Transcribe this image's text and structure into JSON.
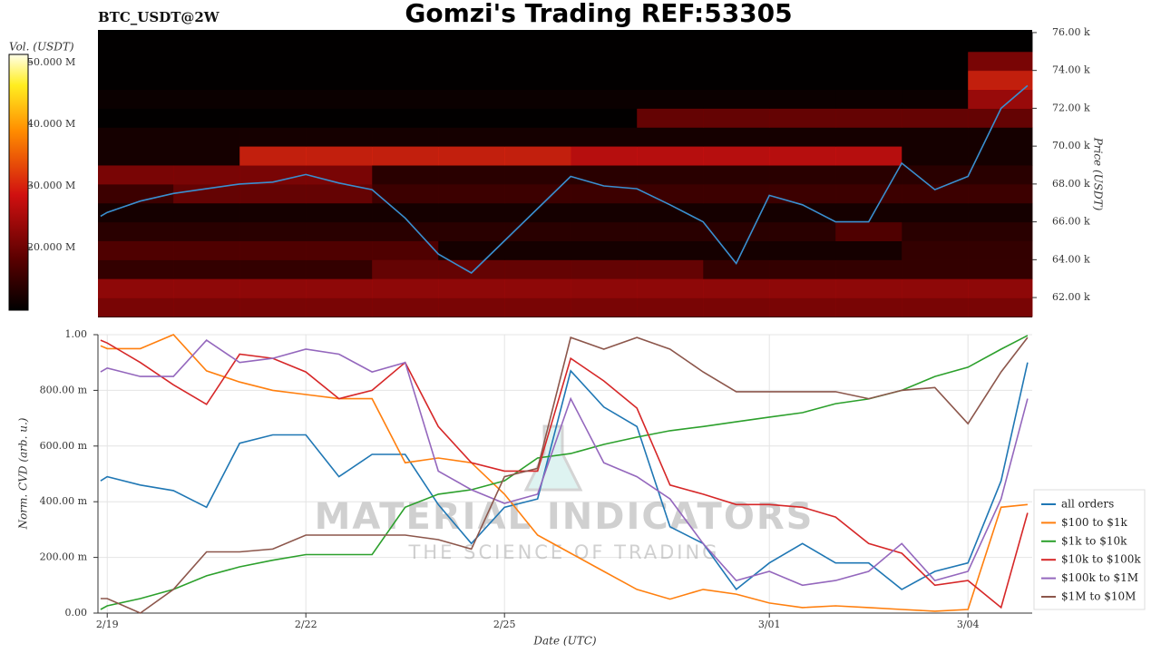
{
  "chart_data": [
    {
      "type": "heatmap",
      "title": "Gomzi's Trading REF:53305",
      "subtitle": "BTC_USDT@2W",
      "ylabel": "Price (USDT)",
      "xlim": [
        -0.14,
        13.97
      ],
      "ylim": [
        60950,
        76140
      ],
      "yticks": [
        {
          "value": 62000,
          "label": "62.00 k"
        },
        {
          "value": 64000,
          "label": "64.00 k"
        },
        {
          "value": 66000,
          "label": "66.00 k"
        },
        {
          "value": 68000,
          "label": "68.00 k"
        },
        {
          "value": 70000,
          "label": "70.00 k"
        },
        {
          "value": 72000,
          "label": "72.00 k"
        },
        {
          "value": 74000,
          "label": "74.00 k"
        },
        {
          "value": 76000,
          "label": "76.00 k"
        }
      ],
      "x_bins": [
        -0.14,
        1,
        2,
        3,
        4,
        5,
        6,
        7,
        8,
        9,
        10,
        11,
        12,
        13,
        13.97
      ],
      "y_bins": [
        61000,
        62000,
        63000,
        64000,
        65000,
        66000,
        67000,
        68000,
        69000,
        70000,
        71000,
        72000,
        73000,
        74000,
        75000,
        76000
      ],
      "values": [
        [
          22000000,
          22000000,
          22000000,
          22000000,
          22000000,
          22000000,
          22000000,
          22000000,
          22000000,
          22000000,
          22000000,
          22000000,
          22000000,
          22000000
        ],
        [
          24000000,
          24000000,
          24000000,
          24000000,
          24000000,
          24000000,
          24000000,
          24000000,
          24000000,
          24000000,
          24000000,
          24000000,
          24000000,
          24000000
        ],
        [
          15000000,
          15000000,
          15000000,
          15000000,
          20000000,
          20000000,
          20000000,
          20000000,
          20000000,
          15000000,
          15000000,
          15000000,
          15000000,
          15000000
        ],
        [
          18000000,
          18000000,
          18000000,
          18000000,
          18000000,
          12000000,
          12000000,
          12000000,
          12000000,
          12000000,
          12000000,
          12000000,
          15000000,
          15000000
        ],
        [
          14000000,
          14000000,
          14000000,
          14000000,
          14000000,
          14000000,
          14000000,
          14000000,
          14000000,
          14000000,
          14000000,
          18000000,
          14000000,
          14000000
        ],
        [
          12000000,
          12000000,
          12000000,
          12000000,
          12000000,
          12000000,
          12000000,
          12000000,
          12000000,
          12000000,
          12000000,
          12000000,
          12000000,
          12000000
        ],
        [
          16000000,
          20000000,
          20000000,
          20000000,
          16000000,
          16000000,
          16000000,
          16000000,
          16000000,
          16000000,
          16000000,
          16000000,
          16000000,
          16000000
        ],
        [
          22000000,
          22000000,
          22000000,
          22000000,
          14000000,
          14000000,
          14000000,
          14000000,
          14000000,
          14000000,
          14000000,
          14000000,
          14000000,
          14000000
        ],
        [
          12000000,
          12000000,
          30000000,
          30000000,
          30000000,
          30000000,
          30000000,
          28000000,
          28000000,
          28000000,
          28000000,
          28000000,
          12000000,
          12000000
        ],
        [
          12000000,
          12000000,
          12000000,
          12000000,
          12000000,
          12000000,
          12000000,
          12000000,
          12000000,
          12000000,
          12000000,
          12000000,
          12000000,
          12000000
        ],
        [
          10000000,
          10000000,
          10000000,
          10000000,
          10000000,
          10000000,
          10000000,
          10000000,
          20000000,
          20000000,
          20000000,
          20000000,
          20000000,
          20000000
        ],
        [
          11000000,
          11000000,
          11000000,
          11000000,
          11000000,
          11000000,
          11000000,
          11000000,
          11000000,
          11000000,
          11000000,
          11000000,
          11000000,
          25000000
        ],
        [
          10000000,
          10000000,
          10000000,
          10000000,
          10000000,
          10000000,
          10000000,
          10000000,
          10000000,
          10000000,
          10000000,
          10000000,
          10000000,
          30000000
        ],
        [
          10000000,
          10000000,
          10000000,
          10000000,
          10000000,
          10000000,
          10000000,
          10000000,
          10000000,
          10000000,
          10000000,
          10000000,
          10000000,
          22000000
        ],
        [
          10000000,
          10000000,
          10000000,
          10000000,
          10000000,
          10000000,
          10000000,
          10000000,
          10000000,
          10000000,
          10000000,
          10000000,
          10000000,
          10000000
        ]
      ],
      "colorbar": {
        "label": "Vol. (USDT)",
        "lim": [
          9850000,
          51300000
        ],
        "ticks": [
          {
            "value": 20000000,
            "label": "20.000 M"
          },
          {
            "value": 30000000,
            "label": "30.000 M"
          },
          {
            "value": 40000000,
            "label": "40.000 M"
          },
          {
            "value": 50000000,
            "label": "50.000 M"
          }
        ]
      },
      "line": {
        "color": "#3a8fd0",
        "x": [
          -0.1,
          0,
          0.5,
          1,
          1.5,
          2,
          2.5,
          3,
          3.5,
          4,
          4.5,
          5,
          5.5,
          6,
          6.5,
          7,
          7.5,
          8,
          8.5,
          9,
          9.5,
          10,
          10.5,
          11,
          11.5,
          12,
          12.5,
          13,
          13.5,
          13.9
        ],
        "values": [
          66300,
          66500,
          67100,
          67500,
          67750,
          68000,
          68100,
          68500,
          68050,
          67700,
          66200,
          64300,
          63300,
          65000,
          66700,
          68400,
          67900,
          67750,
          66900,
          66000,
          63800,
          67400,
          66900,
          66000,
          66000,
          69100,
          67700,
          68400,
          72000,
          73200
        ]
      }
    },
    {
      "type": "line",
      "xlabel": "Date (UTC)",
      "ylabel": "Norm. CVD (arb. u.)",
      "grid": true,
      "legend": "right",
      "xlim": [
        -0.14,
        13.97
      ],
      "ylim": [
        0,
        1
      ],
      "xticks": [
        {
          "value": 0,
          "label": "2/19"
        },
        {
          "value": 3,
          "label": "2/22"
        },
        {
          "value": 6,
          "label": "2/25"
        },
        {
          "value": 10,
          "label": "3/01"
        },
        {
          "value": 13,
          "label": "3/04"
        }
      ],
      "yticks": [
        {
          "value": 0,
          "label": "0.00"
        },
        {
          "value": 0.2,
          "label": "200.00 m"
        },
        {
          "value": 0.4,
          "label": "400.00 m"
        },
        {
          "value": 0.6,
          "label": "600.00 m"
        },
        {
          "value": 0.8,
          "label": "800.00 m"
        },
        {
          "value": 1,
          "label": "1.00"
        }
      ],
      "watermark": "MATERIAL INDICATORS",
      "watermark_tagline": "THE SCIENCE OF TRADING",
      "x": [
        -0.1,
        0,
        0.5,
        1,
        1.5,
        2,
        2.5,
        3,
        3.5,
        4,
        4.5,
        5,
        5.5,
        6,
        6.5,
        7,
        7.5,
        8,
        8.5,
        9,
        9.5,
        10,
        10.5,
        11,
        11.5,
        12,
        12.5,
        13,
        13.5,
        13.9
      ],
      "series": [
        {
          "name": "all orders",
          "color": "#1f77b4",
          "values": [
            0.475,
            0.49,
            0.46,
            0.44,
            0.38,
            0.61,
            0.64,
            0.64,
            0.49,
            0.57,
            0.57,
            0.39,
            0.25,
            0.38,
            0.41,
            0.87,
            0.74,
            0.67,
            0.31,
            0.25,
            0.085,
            0.18,
            0.25,
            0.18,
            0.18,
            0.085,
            0.15,
            0.18,
            0.475,
            0.9
          ]
        },
        {
          "name": "$100 to $1k",
          "color": "#ff7f0e",
          "values": [
            0.96,
            0.95,
            0.95,
            1.0,
            0.87,
            0.83,
            0.8,
            0.785,
            0.77,
            0.77,
            0.54,
            0.557,
            0.54,
            0.427,
            0.28,
            0.215,
            0.15,
            0.085,
            0.05,
            0.085,
            0.068,
            0.036,
            0.02,
            0.026,
            0.02,
            0.013,
            0.007,
            0.013,
            0.38,
            0.39
          ]
        },
        {
          "name": "$1k to $10k",
          "color": "#2ca02c",
          "values": [
            0.013,
            0.026,
            0.052,
            0.085,
            0.134,
            0.166,
            0.19,
            0.21,
            0.21,
            0.21,
            0.38,
            0.427,
            0.443,
            0.475,
            0.557,
            0.573,
            0.606,
            0.632,
            0.655,
            0.67,
            0.687,
            0.704,
            0.72,
            0.752,
            0.769,
            0.8,
            0.85,
            0.883,
            0.948,
            0.997
          ]
        },
        {
          "name": "$10k to $100k",
          "color": "#d62728",
          "values": [
            0.98,
            0.97,
            0.9,
            0.82,
            0.75,
            0.93,
            0.915,
            0.866,
            0.77,
            0.8,
            0.9,
            0.67,
            0.54,
            0.51,
            0.51,
            0.915,
            0.834,
            0.736,
            0.46,
            0.427,
            0.39,
            0.39,
            0.38,
            0.345,
            0.25,
            0.215,
            0.1,
            0.117,
            0.02,
            0.36
          ]
        },
        {
          "name": "$100k to $1M",
          "color": "#9467bd",
          "values": [
            0.866,
            0.88,
            0.85,
            0.85,
            0.98,
            0.9,
            0.915,
            0.948,
            0.93,
            0.866,
            0.9,
            0.51,
            0.443,
            0.394,
            0.427,
            0.77,
            0.54,
            0.49,
            0.41,
            0.25,
            0.117,
            0.15,
            0.1,
            0.117,
            0.15,
            0.25,
            0.117,
            0.15,
            0.41,
            0.77
          ]
        },
        {
          "name": "$1M to $10M",
          "color": "#8c564b",
          "values": [
            0.052,
            0.052,
            0,
            0.085,
            0.22,
            0.22,
            0.23,
            0.28,
            0.28,
            0.28,
            0.28,
            0.264,
            0.23,
            0.49,
            0.52,
            0.99,
            0.948,
            0.99,
            0.948,
            0.866,
            0.795,
            0.795,
            0.795,
            0.795,
            0.77,
            0.8,
            0.81,
            0.68,
            0.866,
            0.99
          ]
        }
      ]
    }
  ]
}
